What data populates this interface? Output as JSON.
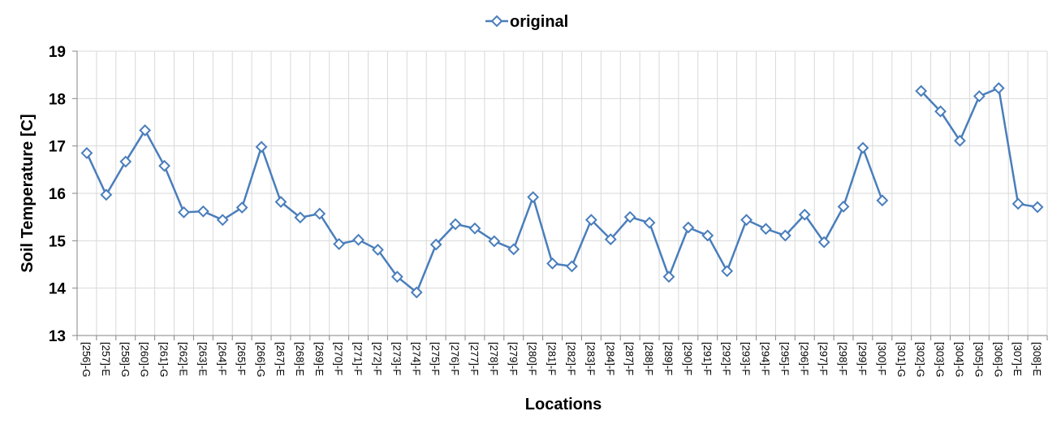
{
  "chart_data": {
    "type": "line",
    "x_label": "Locations",
    "y_label": "Soil Temperature [C]",
    "categories": [
      "[256]-G",
      "[257]-E",
      "[258]-G",
      "[260]-G",
      "[261]-G",
      "[262]-E",
      "[263]-E",
      "[264]-F",
      "[265]-F",
      "[266]-G",
      "[267]-E",
      "[268]-E",
      "[269]-E",
      "[270]-F",
      "[271]-F",
      "[272]-F",
      "[273]-F",
      "[274]-F",
      "[275]-F",
      "[276]-F",
      "[277]-F",
      "[278]-F",
      "[279]-F",
      "[280]-F",
      "[281]-F",
      "[282]-F",
      "[283]-F",
      "[284]-F",
      "[287]-F",
      "[288]-F",
      "[289]-F",
      "[290]-F",
      "[291]-F",
      "[292]-F",
      "[293]-F",
      "[294]-F",
      "[295]-F",
      "[296]-F",
      "[297]-F",
      "[298]-F",
      "[299]-F",
      "[300]-F",
      "[301]-G",
      "[302]-G",
      "[303]-G",
      "[304]-G",
      "[305]-G",
      "[306]-G",
      "[307]-E",
      "[308]-E"
    ],
    "series": [
      {
        "name": "original",
        "color": "#4a7ebb",
        "values": [
          16.85,
          15.97,
          16.67,
          17.33,
          16.58,
          15.6,
          15.62,
          15.44,
          15.7,
          16.98,
          15.82,
          15.49,
          15.57,
          14.93,
          15.02,
          14.81,
          14.24,
          13.91,
          14.92,
          15.35,
          15.26,
          14.99,
          14.82,
          15.92,
          14.52,
          14.46,
          15.44,
          15.03,
          15.5,
          15.38,
          14.24,
          15.28,
          15.11,
          14.36,
          15.44,
          15.25,
          15.11,
          15.55,
          14.97,
          15.72,
          16.96,
          15.85,
          null,
          18.16,
          17.73,
          17.11,
          18.05,
          18.22,
          15.78,
          15.71
        ]
      }
    ],
    "ylim": [
      13,
      19
    ],
    "yticks": [
      13,
      14,
      15,
      16,
      17,
      18,
      19
    ],
    "grid": true,
    "legend": "top"
  }
}
